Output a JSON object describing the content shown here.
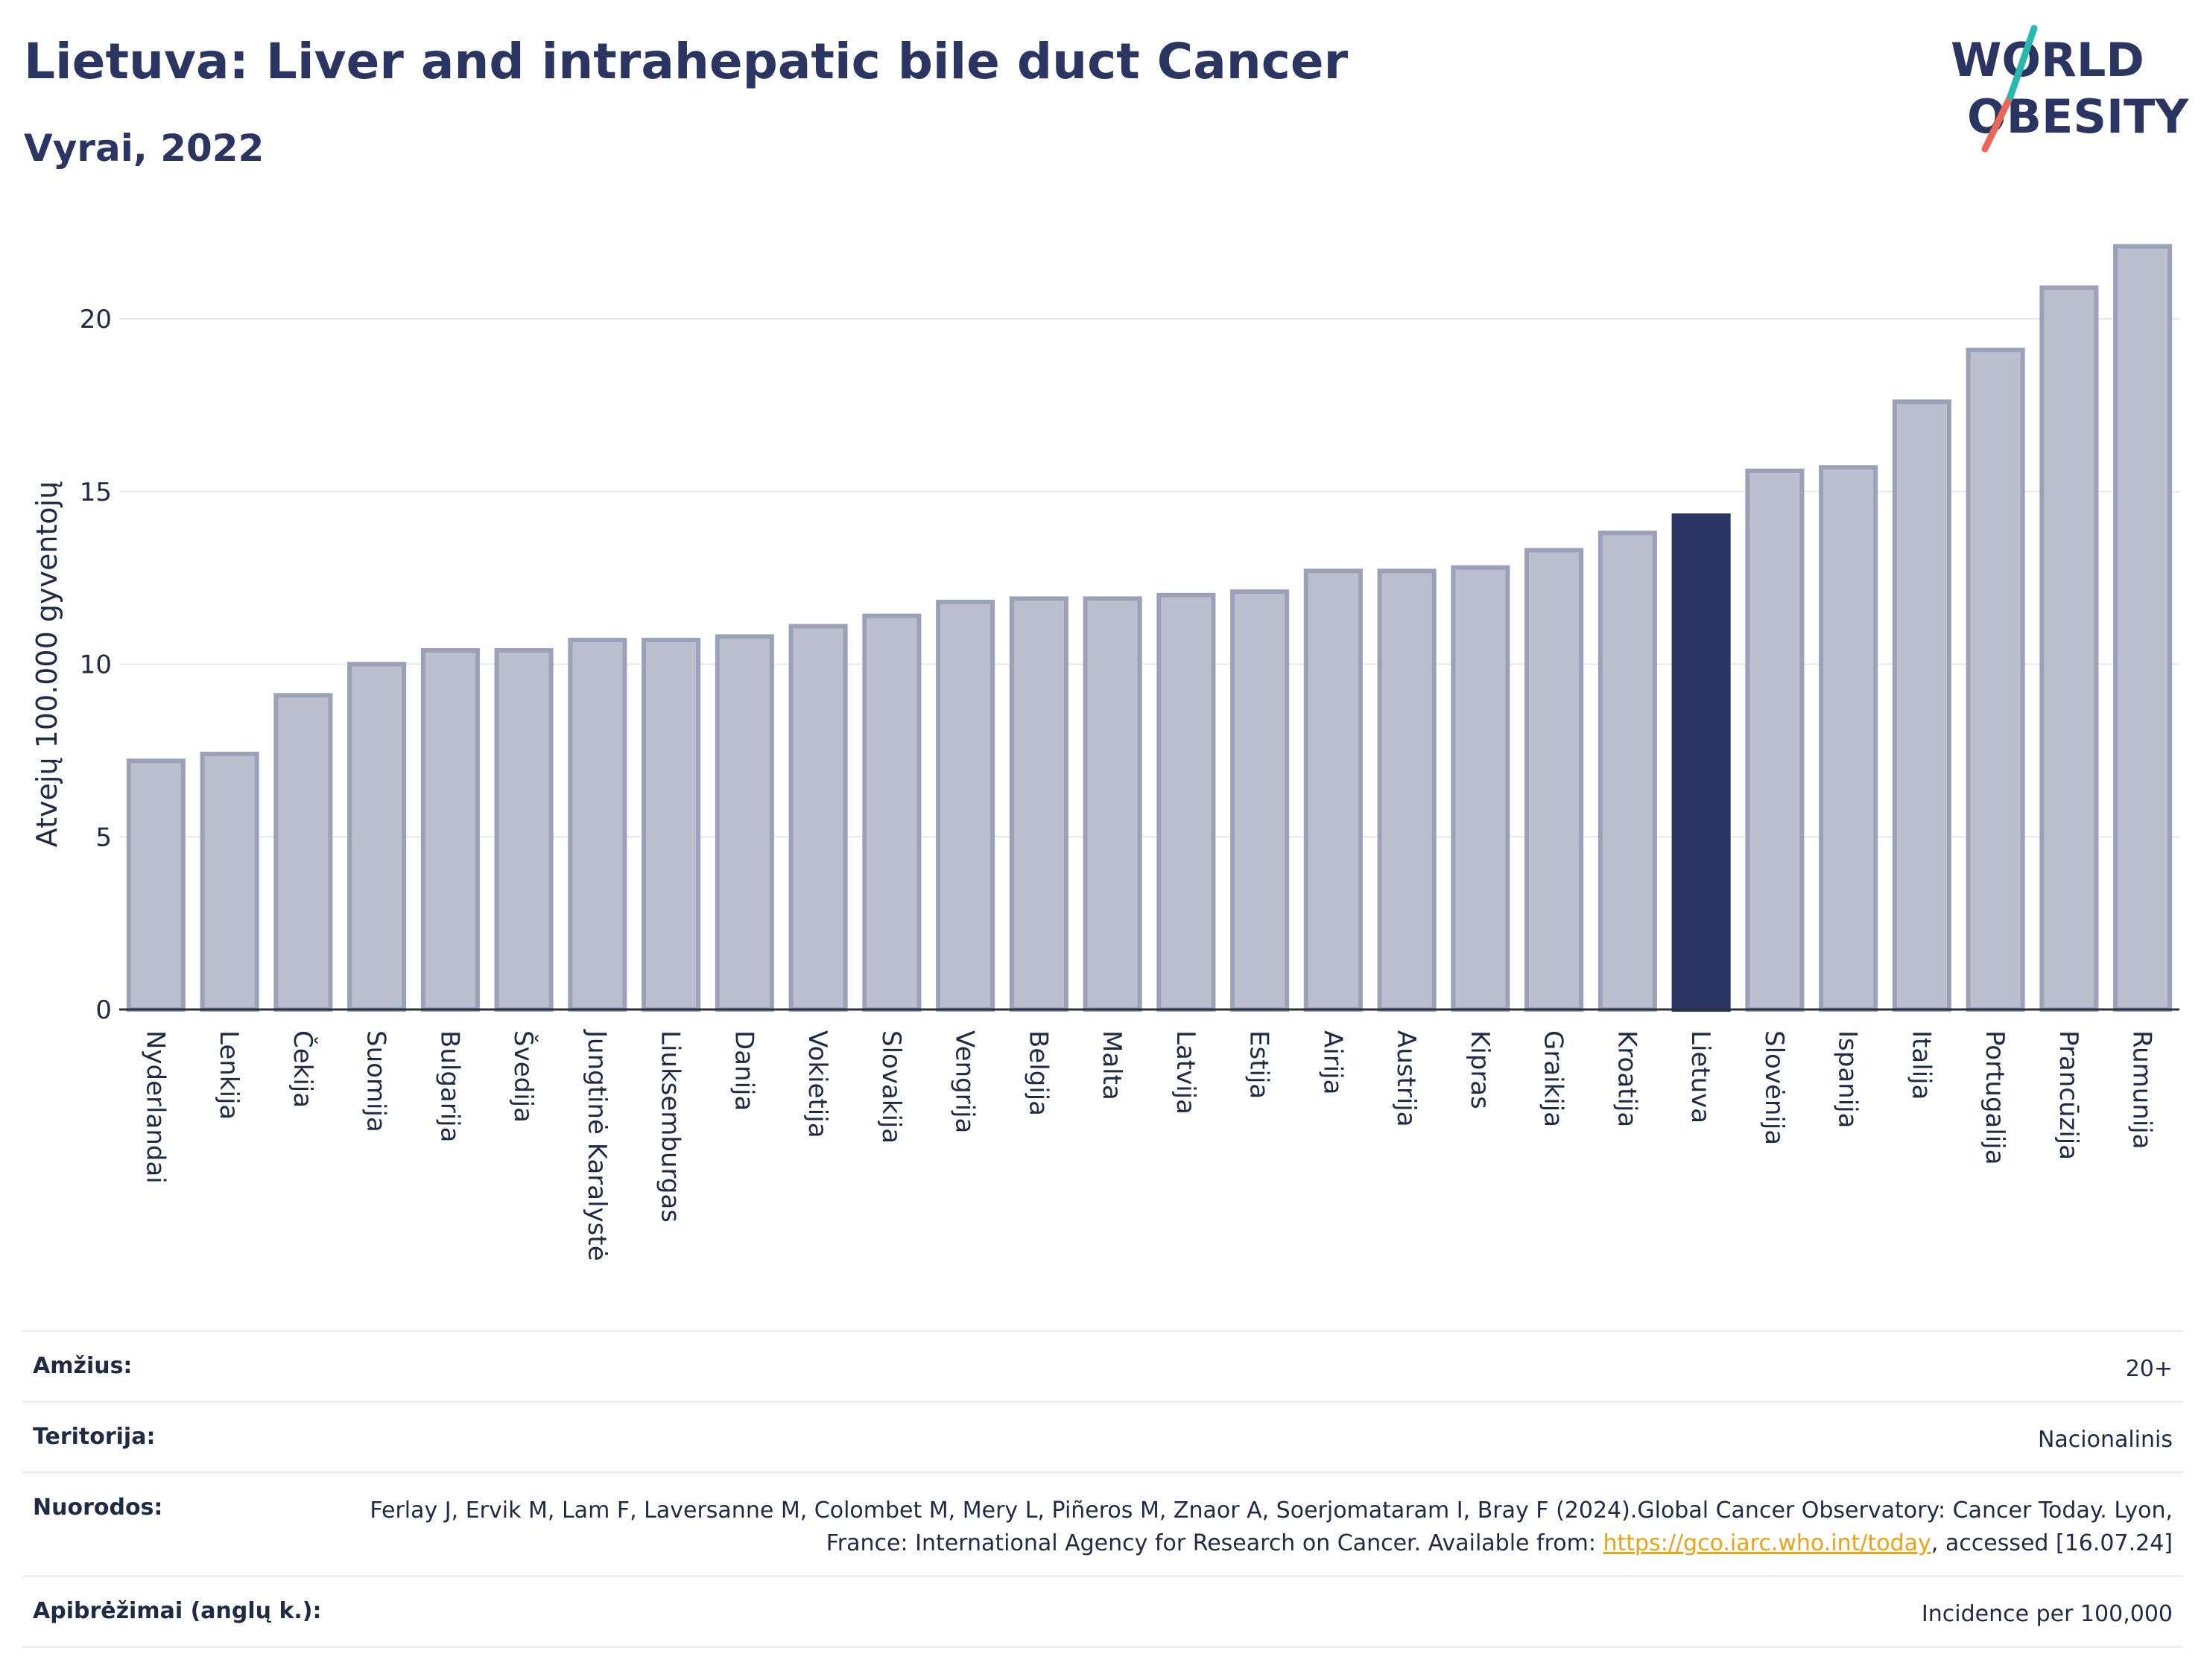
{
  "header": {
    "title": "Lietuva: Liver and intrahepatic bile duct Cancer",
    "subtitle": "Vyrai, 2022"
  },
  "logo": {
    "line1": "WORLD",
    "line2": "OBESITY"
  },
  "colors": {
    "bar": "#bcc0ce",
    "bar_stroke": "#9aa1b8",
    "highlight": "#2b3562",
    "grid": "#e6e8ee",
    "accent_teal": "#2ab7b0",
    "accent_coral": "#e8685a"
  },
  "chart_data": {
    "type": "bar",
    "title": "Lietuva: Liver and intrahepatic bile duct Cancer",
    "subtitle": "Vyrai, 2022",
    "ylabel": "Atvejų 100.000 gyventojų",
    "xlabel": "",
    "ylim": [
      0,
      22.8
    ],
    "yticks": [
      0,
      5,
      10,
      15,
      20
    ],
    "grid": true,
    "highlight": "Lietuva",
    "categories": [
      "Nyderlandai",
      "Lenkija",
      "Čekija",
      "Suomija",
      "Bulgarija",
      "Švedija",
      "Jungtinė Karalystė",
      "Liuksemburgas",
      "Danija",
      "Vokietija",
      "Slovakija",
      "Vengrija",
      "Belgija",
      "Malta",
      "Latvija",
      "Estija",
      "Airija",
      "Austrija",
      "Kipras",
      "Graikija",
      "Kroatija",
      "Lietuva",
      "Slovėnija",
      "Ispanija",
      "Italija",
      "Portugalija",
      "Prancūzija",
      "Rumunija"
    ],
    "values": [
      7.2,
      7.4,
      9.1,
      10.0,
      10.4,
      10.4,
      10.7,
      10.7,
      10.8,
      11.1,
      11.4,
      11.8,
      11.9,
      11.9,
      12.0,
      12.1,
      12.7,
      12.7,
      12.8,
      13.3,
      13.8,
      14.3,
      15.6,
      15.7,
      17.6,
      19.1,
      20.9,
      22.1
    ]
  },
  "info": [
    {
      "key": "Amžius:",
      "value": "20+"
    },
    {
      "key": "Teritorija:",
      "value": "Nacionalinis"
    },
    {
      "key": "Nuorodos:",
      "value_parts": {
        "before": "Ferlay J, Ervik M, Lam F, Laversanne M, Colombet M, Mery L, Piñeros M, Znaor A, Soerjomataram I, Bray F (2024).Global Cancer Observatory: Cancer Today. Lyon, France: International Agency for Research on Cancer. Available from: ",
        "link": "https://gco.iarc.who.int/today",
        "after": ", accessed [16.07.24]"
      }
    },
    {
      "key": "Apibrėžimai (anglų k.):",
      "value": "Incidence per 100,000"
    }
  ]
}
